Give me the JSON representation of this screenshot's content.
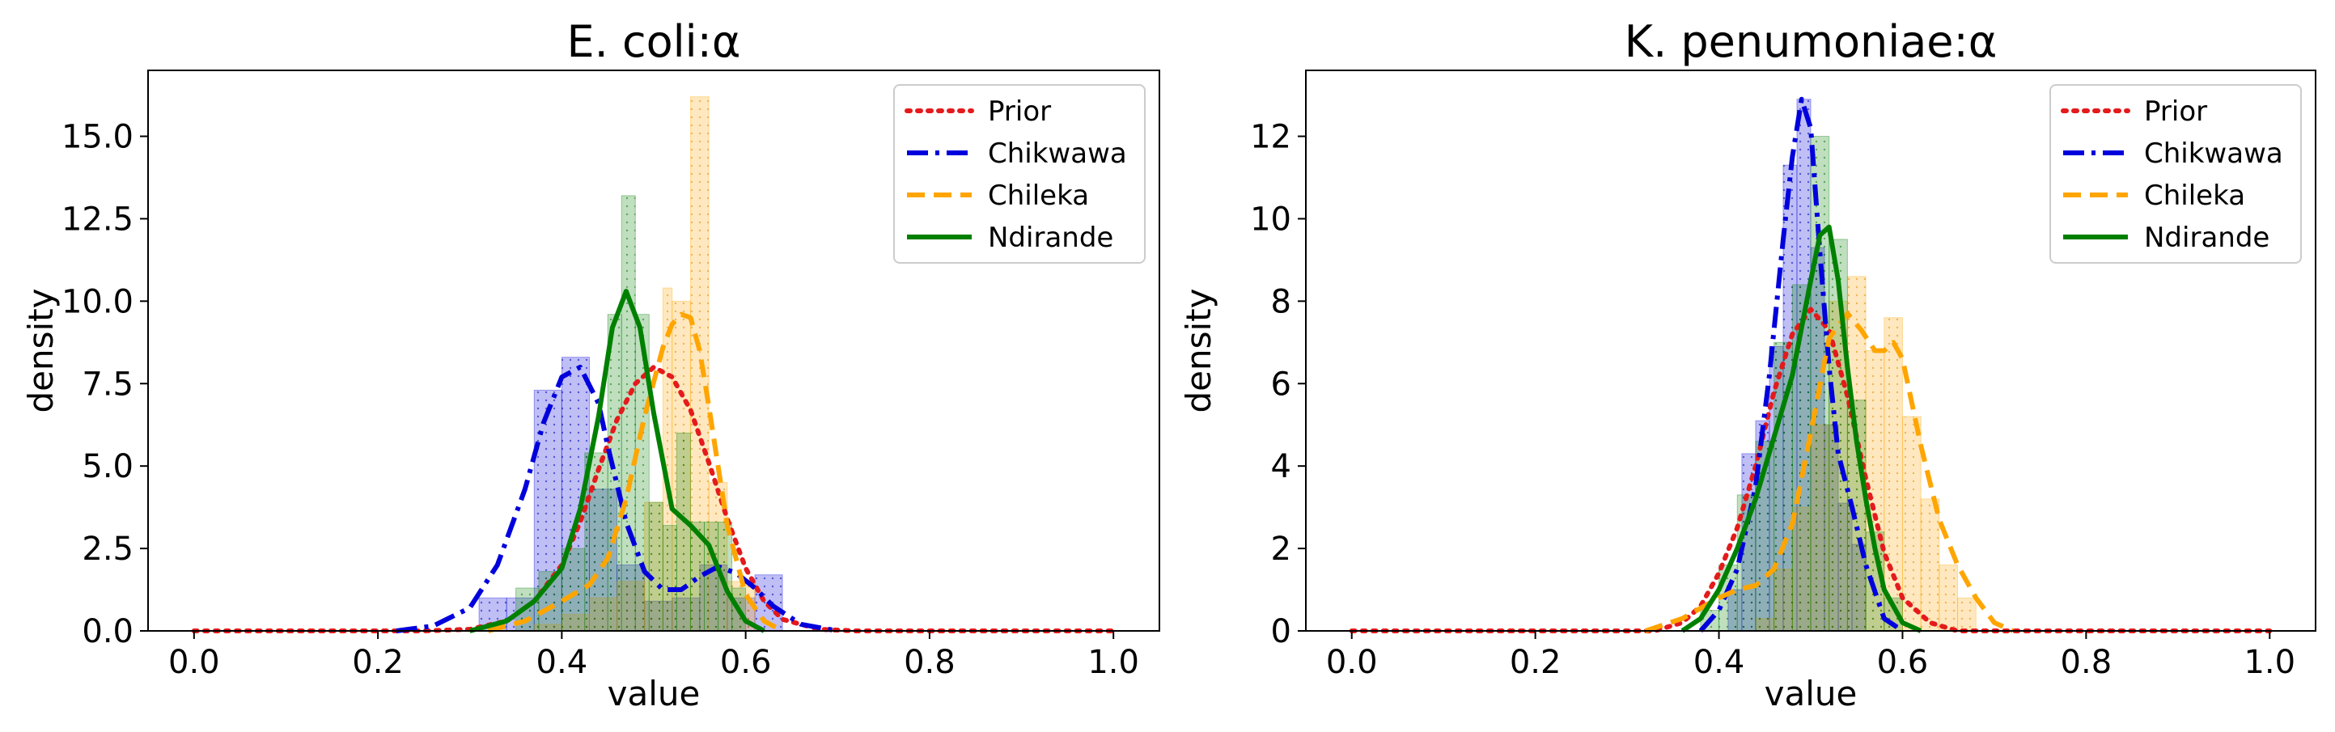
{
  "chart_data": [
    {
      "type": "histogram+kde",
      "title": "E. coli:α",
      "xlabel": "value",
      "ylabel": "density",
      "xlim": [
        -0.05,
        1.05
      ],
      "ylim": [
        0,
        17
      ],
      "xticks": [
        0.0,
        0.2,
        0.4,
        0.6,
        0.8,
        1.0
      ],
      "xtick_labels": [
        "0.0",
        "0.2",
        "0.4",
        "0.6",
        "0.8",
        "1.0"
      ],
      "yticks": [
        0,
        2.5,
        5,
        7.5,
        10,
        12.5,
        15
      ],
      "ytick_labels": [
        "0.0",
        "2.5",
        "5.0",
        "7.5",
        "10.0",
        "12.5",
        "15.0"
      ],
      "legend_position": "top-right",
      "series": [
        {
          "name": "Prior",
          "color": "#e41a1c",
          "style": "dotted",
          "kde_x": [
            0.0,
            0.25,
            0.3,
            0.34,
            0.37,
            0.4,
            0.42,
            0.44,
            0.46,
            0.48,
            0.5,
            0.52,
            0.54,
            0.56,
            0.58,
            0.6,
            0.62,
            0.64,
            0.68,
            0.72,
            1.0
          ],
          "kde_y": [
            0,
            0,
            0.05,
            0.3,
            0.9,
            2.0,
            3.3,
            4.9,
            6.4,
            7.5,
            8.0,
            7.7,
            6.7,
            5.1,
            3.4,
            1.9,
            0.9,
            0.35,
            0.05,
            0,
            0
          ]
        },
        {
          "name": "Chikwawa",
          "color": "#0000dd",
          "style": "dashdot",
          "kde_x": [
            0.22,
            0.26,
            0.3,
            0.33,
            0.36,
            0.38,
            0.4,
            0.42,
            0.44,
            0.45,
            0.47,
            0.49,
            0.51,
            0.53,
            0.55,
            0.57,
            0.59,
            0.61,
            0.63,
            0.66,
            0.7
          ],
          "kde_y": [
            0,
            0.15,
            0.7,
            2.0,
            4.3,
            6.3,
            7.7,
            8.0,
            6.9,
            5.6,
            3.3,
            1.8,
            1.25,
            1.25,
            1.65,
            1.95,
            1.75,
            1.3,
            0.75,
            0.2,
            0
          ],
          "hist_edges": [
            0.31,
            0.34,
            0.37,
            0.4,
            0.43,
            0.46,
            0.49,
            0.52,
            0.55,
            0.58,
            0.61,
            0.64
          ],
          "hist_values": [
            1.0,
            1.0,
            7.3,
            8.3,
            4.3,
            2.0,
            0.9,
            1.0,
            2.0,
            1.0,
            1.7
          ]
        },
        {
          "name": "Chileka",
          "color": "#ffa500",
          "style": "dashed",
          "kde_x": [
            0.32,
            0.36,
            0.4,
            0.43,
            0.45,
            0.47,
            0.49,
            0.51,
            0.52,
            0.53,
            0.54,
            0.55,
            0.56,
            0.57,
            0.58,
            0.6,
            0.62,
            0.64
          ],
          "kde_y": [
            0,
            0.3,
            0.9,
            1.4,
            2.2,
            4.0,
            6.5,
            8.6,
            9.3,
            9.6,
            9.5,
            8.5,
            6.8,
            5.0,
            3.2,
            1.1,
            0.3,
            0
          ],
          "hist_edges": [
            0.37,
            0.4,
            0.43,
            0.46,
            0.49,
            0.51,
            0.52,
            0.54,
            0.56,
            0.58,
            0.61
          ],
          "hist_values": [
            0.2,
            0.5,
            1.0,
            1.5,
            3.9,
            10.4,
            10.0,
            16.2,
            4.5,
            1.5
          ]
        },
        {
          "name": "Ndirande",
          "color": "#008000",
          "style": "solid",
          "kde_x": [
            0.3,
            0.34,
            0.37,
            0.4,
            0.42,
            0.44,
            0.455,
            0.47,
            0.485,
            0.5,
            0.52,
            0.54,
            0.56,
            0.58,
            0.6,
            0.62
          ],
          "kde_y": [
            0,
            0.3,
            0.9,
            1.9,
            3.7,
            6.5,
            9.2,
            10.3,
            9.2,
            6.6,
            3.7,
            3.2,
            2.6,
            1.2,
            0.3,
            0
          ],
          "hist_edges": [
            0.35,
            0.375,
            0.4,
            0.425,
            0.45,
            0.465,
            0.48,
            0.495,
            0.51,
            0.525,
            0.54,
            0.555,
            0.57,
            0.585,
            0.6
          ],
          "hist_values": [
            1.3,
            1.8,
            2.5,
            5.4,
            9.6,
            13.2,
            9.6,
            3.9,
            3.2,
            6.0,
            3.3,
            3.3,
            3.3,
            1.3
          ]
        }
      ]
    },
    {
      "type": "histogram+kde",
      "title": "K. penumoniae:α",
      "xlabel": "value",
      "ylabel": "density",
      "xlim": [
        -0.05,
        1.05
      ],
      "ylim": [
        0,
        13.6
      ],
      "xticks": [
        0.0,
        0.2,
        0.4,
        0.6,
        0.8,
        1.0
      ],
      "xtick_labels": [
        "0.0",
        "0.2",
        "0.4",
        "0.6",
        "0.8",
        "1.0"
      ],
      "yticks": [
        0,
        2,
        4,
        6,
        8,
        10,
        12
      ],
      "ytick_labels": [
        "0",
        "2",
        "4",
        "6",
        "8",
        "10",
        "12"
      ],
      "legend_position": "top-right",
      "series": [
        {
          "name": "Prior",
          "color": "#e41a1c",
          "style": "dotted",
          "kde_x": [
            0.0,
            0.33,
            0.36,
            0.38,
            0.4,
            0.42,
            0.44,
            0.46,
            0.48,
            0.5,
            0.52,
            0.54,
            0.56,
            0.58,
            0.6,
            0.63,
            0.66,
            1.0
          ],
          "kde_y": [
            0,
            0,
            0.2,
            0.6,
            1.4,
            2.5,
            4.0,
            5.8,
            7.2,
            7.8,
            7.3,
            5.7,
            3.7,
            1.9,
            0.8,
            0.2,
            0,
            0
          ]
        },
        {
          "name": "Chikwawa",
          "color": "#0000dd",
          "style": "dashdot",
          "kde_x": [
            0.38,
            0.4,
            0.42,
            0.44,
            0.455,
            0.47,
            0.48,
            0.49,
            0.5,
            0.51,
            0.52,
            0.53,
            0.545,
            0.56,
            0.58,
            0.6
          ],
          "kde_y": [
            0,
            0.5,
            1.5,
            3.5,
            6.2,
            9.5,
            11.5,
            12.9,
            12.2,
            9.2,
            6.4,
            4.3,
            3.0,
            1.6,
            0.3,
            0
          ],
          "hist_edges": [
            0.41,
            0.425,
            0.44,
            0.455,
            0.47,
            0.485,
            0.5,
            0.515,
            0.53,
            0.545,
            0.56
          ],
          "hist_values": [
            1.0,
            4.3,
            5.1,
            6.9,
            11.3,
            12.9,
            9.3,
            5.0,
            3.1,
            2.1
          ]
        },
        {
          "name": "Chileka",
          "color": "#ffa500",
          "style": "dashed",
          "kde_x": [
            0.32,
            0.36,
            0.4,
            0.42,
            0.44,
            0.46,
            0.48,
            0.5,
            0.52,
            0.54,
            0.555,
            0.57,
            0.58,
            0.59,
            0.6,
            0.62,
            0.64,
            0.66,
            0.68,
            0.7,
            0.72
          ],
          "kde_y": [
            0,
            0.3,
            0.8,
            1.0,
            1.1,
            1.5,
            2.6,
            4.8,
            7.1,
            7.7,
            7.3,
            6.8,
            6.8,
            7.0,
            6.6,
            4.5,
            2.7,
            1.6,
            0.8,
            0.2,
            0
          ],
          "hist_edges": [
            0.44,
            0.46,
            0.48,
            0.5,
            0.52,
            0.54,
            0.56,
            0.58,
            0.6,
            0.62,
            0.64,
            0.66,
            0.68
          ],
          "hist_values": [
            0.3,
            1.5,
            3.0,
            5.0,
            8.0,
            8.6,
            6.8,
            7.6,
            5.2,
            3.2,
            1.6,
            0.8
          ]
        },
        {
          "name": "Ndirande",
          "color": "#008000",
          "style": "solid",
          "kde_x": [
            0.36,
            0.38,
            0.4,
            0.42,
            0.44,
            0.46,
            0.48,
            0.5,
            0.51,
            0.52,
            0.53,
            0.54,
            0.55,
            0.56,
            0.57,
            0.58,
            0.6,
            0.62
          ],
          "kde_y": [
            0,
            0.3,
            1.0,
            2.0,
            3.2,
            4.7,
            6.2,
            8.5,
            9.6,
            9.8,
            8.5,
            6.4,
            4.6,
            3.2,
            2.0,
            1.0,
            0.2,
            0
          ],
          "hist_edges": [
            0.38,
            0.4,
            0.42,
            0.44,
            0.46,
            0.48,
            0.5,
            0.52,
            0.54,
            0.56,
            0.58,
            0.6
          ],
          "hist_values": [
            0.5,
            1.6,
            3.3,
            4.6,
            7.0,
            8.4,
            12.0,
            9.5,
            5.6,
            2.4,
            0.8
          ]
        }
      ]
    }
  ]
}
